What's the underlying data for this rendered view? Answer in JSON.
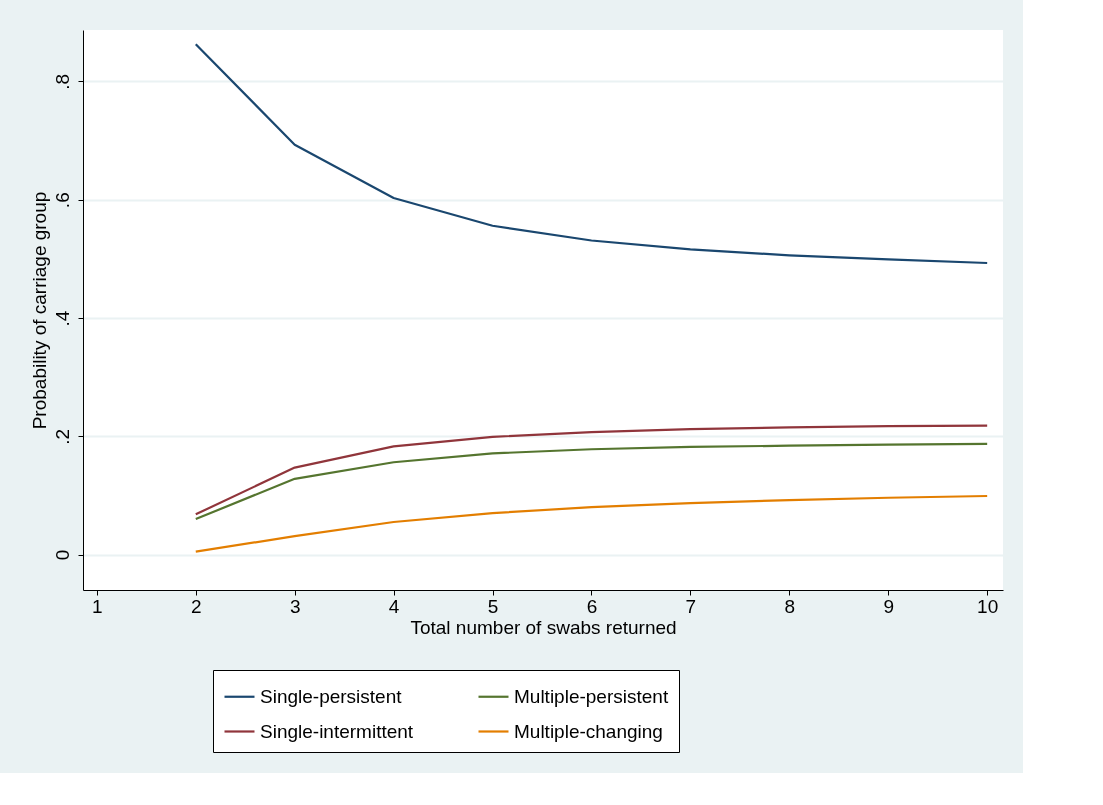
{
  "chart_data": {
    "type": "line",
    "xlabel": "Total number of swabs returned",
    "ylabel": "Probability of carriage group",
    "x": [
      2,
      3,
      4,
      5,
      6,
      7,
      8,
      9,
      10
    ],
    "series": [
      {
        "name": "Single-persistent",
        "color": "#1a476f",
        "values": [
          0.863,
          0.693,
          0.603,
          0.556,
          0.531,
          0.516,
          0.506,
          0.499,
          0.493
        ]
      },
      {
        "name": "Single-intermittent",
        "color": "#90353b",
        "values": [
          0.068,
          0.147,
          0.183,
          0.199,
          0.207,
          0.212,
          0.215,
          0.217,
          0.218
        ]
      },
      {
        "name": "Multiple-persistent",
        "color": "#55752f",
        "values": [
          0.06,
          0.128,
          0.156,
          0.171,
          0.178,
          0.182,
          0.184,
          0.186,
          0.187
        ]
      },
      {
        "name": "Multiple-changing",
        "color": "#e37e00",
        "values": [
          0.005,
          0.031,
          0.055,
          0.07,
          0.08,
          0.087,
          0.092,
          0.096,
          0.099
        ]
      }
    ],
    "xlim": [
      0.86,
      10.16
    ],
    "xticks": [
      1,
      2,
      3,
      4,
      5,
      6,
      7,
      8,
      9,
      10
    ],
    "ylim": [
      -0.06,
      0.887
    ],
    "yticks": [
      0,
      {
        "value": 0.2,
        "label": ".2"
      },
      {
        "value": 0.4,
        "label": ".4"
      },
      {
        "value": 0.6,
        "label": ".6"
      },
      {
        "value": 0.8,
        "label": ".8"
      }
    ],
    "grid": "y",
    "legend": "bottom",
    "marker": "none",
    "line_style": "solid"
  }
}
